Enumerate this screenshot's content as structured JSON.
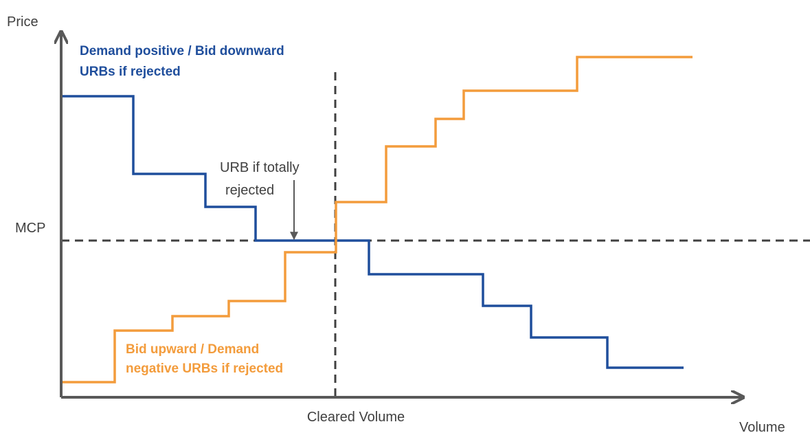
{
  "axes": {
    "y_label": "Price",
    "x_label": "Volume"
  },
  "labels": {
    "mcp": "MCP",
    "cleared_volume": "Cleared Volume"
  },
  "annotations": {
    "demand": [
      "Demand positive / Bid downward",
      "URBs if rejected"
    ],
    "urb": [
      "URB if totally",
      "rejected"
    ],
    "supply": [
      "Bid upward / Demand",
      "negative URBs if rejected"
    ]
  }
}
